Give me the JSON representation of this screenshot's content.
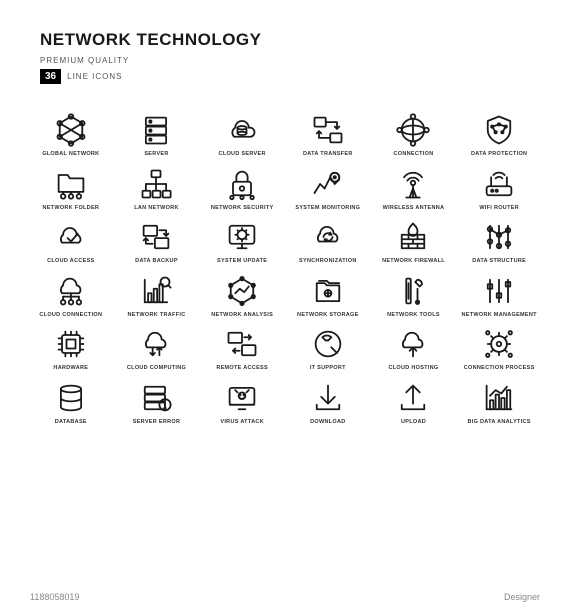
{
  "header": {
    "title": "NETWORK TECHNOLOGY",
    "subtitle": "PREMIUM QUALITY",
    "count": "36",
    "count_label": "LINE ICONS"
  },
  "icons": [
    {
      "id": "global-network",
      "label": "GLOBAL NETWORK"
    },
    {
      "id": "server",
      "label": "SERVER"
    },
    {
      "id": "cloud-server",
      "label": "CLOUD SERVER"
    },
    {
      "id": "data-transfer",
      "label": "DATA TRANSFER"
    },
    {
      "id": "connection",
      "label": "CONNECTION"
    },
    {
      "id": "data-protection",
      "label": "DATA PROTECTION"
    },
    {
      "id": "network-folder",
      "label": "NETWORK FOLDER"
    },
    {
      "id": "lan-network",
      "label": "LAN NETWORK"
    },
    {
      "id": "network-security",
      "label": "NETWORK SECURITY"
    },
    {
      "id": "system-monitoring",
      "label": "SYSTEM MONITORING"
    },
    {
      "id": "wireless-antenna",
      "label": "WIRELESS ANTENNA"
    },
    {
      "id": "wifi-router",
      "label": "WIFI ROUTER"
    },
    {
      "id": "cloud-access",
      "label": "CLOUD ACCESS"
    },
    {
      "id": "data-backup",
      "label": "DATA BACKUP"
    },
    {
      "id": "system-update",
      "label": "SYSTEM UPDATE"
    },
    {
      "id": "synchronization",
      "label": "SYNCHRONIZATION"
    },
    {
      "id": "network-firewall",
      "label": "NETWORK FIREWALL"
    },
    {
      "id": "data-structure",
      "label": "DATA STRUCTURE"
    },
    {
      "id": "cloud-connection",
      "label": "CLOUD CONNECTION"
    },
    {
      "id": "network-traffic",
      "label": "NETWORK TRAFFIC"
    },
    {
      "id": "network-analysis",
      "label": "NETWORK ANALYSIS"
    },
    {
      "id": "network-storage",
      "label": "NETWORK STORAGE"
    },
    {
      "id": "network-tools",
      "label": "NETWORK TOOLS"
    },
    {
      "id": "network-management",
      "label": "NETWORK MANAGEMENT"
    },
    {
      "id": "hardware",
      "label": "HARDWARE"
    },
    {
      "id": "cloud-computing",
      "label": "CLOUD COMPUTING"
    },
    {
      "id": "remote-access",
      "label": "REMOTE ACCESS"
    },
    {
      "id": "it-support",
      "label": "IT SUPPORT"
    },
    {
      "id": "cloud-hosting",
      "label": "CLOUD HOSTING"
    },
    {
      "id": "connection-process",
      "label": "CONNECTION PROCESS"
    },
    {
      "id": "database",
      "label": "DATABASE"
    },
    {
      "id": "server-error",
      "label": "SERVER ERROR"
    },
    {
      "id": "virus-attack",
      "label": "VIRUS ATTACK"
    },
    {
      "id": "download",
      "label": "DOWNLOAD"
    },
    {
      "id": "upload",
      "label": "UPLOAD"
    },
    {
      "id": "big-data-analytics",
      "label": "BIG DATA ANALYTICS"
    }
  ],
  "footer": {
    "id": "1188058019",
    "credit": "Designer"
  },
  "style": {
    "stroke_color": "#1a1a1a",
    "stroke_width": 1.6,
    "background": "#ffffff",
    "label_fontsize": 5.5,
    "title_fontsize": 17,
    "icon_box": 36,
    "grid_cols": 6,
    "grid_rows": 6
  }
}
